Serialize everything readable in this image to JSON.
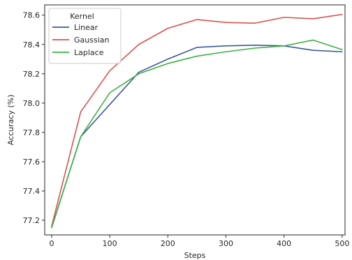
{
  "chart_data": {
    "type": "line",
    "xlabel": "Steps",
    "ylabel": "Accuracy (%)",
    "xlim": [
      -12,
      505
    ],
    "ylim": [
      77.1,
      78.67
    ],
    "xticks": [
      0,
      100,
      200,
      300,
      400,
      500
    ],
    "yticks": [
      77.2,
      77.4,
      77.6,
      77.8,
      78.0,
      78.2,
      78.4,
      78.6
    ],
    "grid": false,
    "legend": {
      "title": "Kernel",
      "placement": "top-left"
    },
    "x": [
      0,
      50,
      100,
      150,
      200,
      250,
      300,
      350,
      400,
      450,
      500
    ],
    "series": [
      {
        "name": "Linear",
        "color": "#3b5998",
        "values": [
          77.15,
          77.77,
          77.99,
          78.21,
          78.3,
          78.38,
          78.39,
          78.395,
          78.39,
          78.36,
          78.35
        ]
      },
      {
        "name": "Gaussian",
        "color": "#d9534f",
        "values": [
          77.16,
          77.94,
          78.22,
          78.4,
          78.51,
          78.57,
          78.55,
          78.545,
          78.585,
          78.575,
          78.605
        ]
      },
      {
        "name": "Laplace",
        "color": "#3cb043",
        "values": [
          77.15,
          77.77,
          78.07,
          78.2,
          78.27,
          78.32,
          78.35,
          78.375,
          78.39,
          78.43,
          78.365
        ]
      }
    ]
  }
}
